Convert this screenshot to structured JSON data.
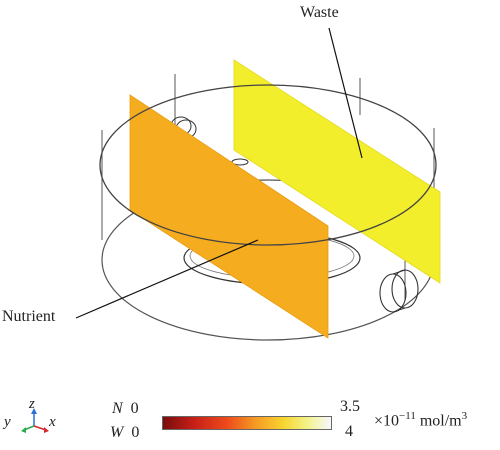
{
  "labels": {
    "waste": "Waste",
    "nutrient": "Nutrient"
  },
  "axes": {
    "z": "z",
    "y": "y",
    "x": "x"
  },
  "legend": {
    "nutrient_symbol": "N",
    "waste_symbol": "W",
    "nutrient_min": "0",
    "waste_min": "0",
    "nutrient_max": "3.5",
    "waste_max": "4",
    "unit_prefix": "×10",
    "unit_exponent": "−11",
    "unit_main": " mol/m",
    "unit_power": "3",
    "colormap": [
      "#7a0c0c",
      "#c51f18",
      "#ee4a1c",
      "#f59a23",
      "#f7d631",
      "#f3f38a",
      "#f6f8ff"
    ]
  },
  "colors": {
    "nutrient_plane": "#f5ad1f",
    "waste_plane": "#f3ee2c",
    "outline": "#555555"
  }
}
